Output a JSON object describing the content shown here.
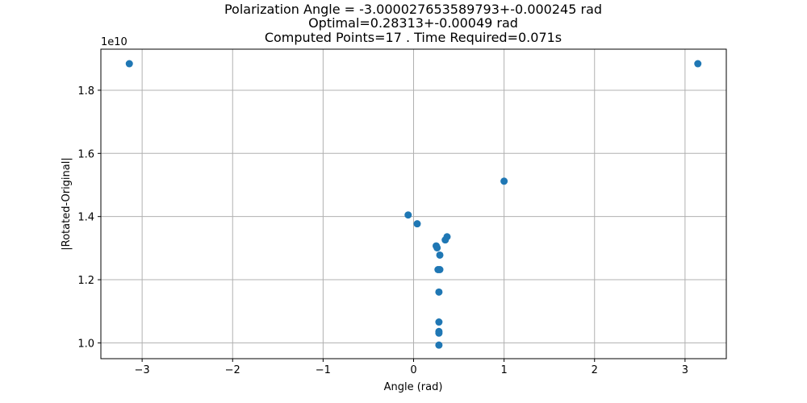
{
  "chart_data": {
    "type": "scatter",
    "title_lines": [
      "Polarization Angle = -3.000027653589793+-0.000245 rad",
      "Optimal=0.28313+-0.00049 rad",
      "Computed Points=17 . Time Required=0.071s"
    ],
    "xlabel": "Angle (rad)",
    "ylabel": "|Rotated-Original|",
    "y_offset_label": "1e10",
    "xlim": [
      -3.456,
      3.456
    ],
    "ylim": [
      0.95,
      1.93
    ],
    "xticks": [
      -3,
      -2,
      -1,
      0,
      1,
      2,
      3
    ],
    "xtick_labels": [
      "−3",
      "−2",
      "−1",
      "0",
      "1",
      "2",
      "3"
    ],
    "yticks": [
      1.0,
      1.2,
      1.4,
      1.6,
      1.8
    ],
    "ytick_labels": [
      "1.0",
      "1.2",
      "1.4",
      "1.6",
      "1.8"
    ],
    "grid": true,
    "marker_color": "#1f77b4",
    "points": [
      {
        "x": -3.1416,
        "y": 1.884
      },
      {
        "x": 3.1416,
        "y": 1.884
      },
      {
        "x": 1.0,
        "y": 1.512
      },
      {
        "x": -0.06,
        "y": 1.405
      },
      {
        "x": 0.04,
        "y": 1.377
      },
      {
        "x": 0.37,
        "y": 1.336
      },
      {
        "x": 0.35,
        "y": 1.326
      },
      {
        "x": 0.25,
        "y": 1.307
      },
      {
        "x": 0.26,
        "y": 1.301
      },
      {
        "x": 0.29,
        "y": 1.278
      },
      {
        "x": 0.27,
        "y": 1.232
      },
      {
        "x": 0.29,
        "y": 1.232
      },
      {
        "x": 0.28,
        "y": 1.161
      },
      {
        "x": 0.28,
        "y": 1.066
      },
      {
        "x": 0.28,
        "y": 1.036
      },
      {
        "x": 0.28,
        "y": 1.031
      },
      {
        "x": 0.28,
        "y": 0.993
      }
    ]
  }
}
